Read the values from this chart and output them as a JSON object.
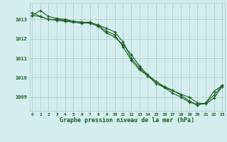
{
  "hours": [
    0,
    1,
    2,
    3,
    4,
    5,
    6,
    7,
    8,
    9,
    10,
    11,
    12,
    13,
    14,
    15,
    16,
    17,
    18,
    19,
    20,
    21,
    22,
    23
  ],
  "series1": [
    1013.2,
    1013.45,
    1013.15,
    1013.05,
    1013.0,
    1012.9,
    1012.85,
    1012.85,
    1012.7,
    1012.55,
    1012.35,
    1011.85,
    1011.0,
    1010.5,
    1010.1,
    1009.7,
    1009.5,
    1009.2,
    1009.0,
    1008.75,
    1008.6,
    1008.7,
    1009.3,
    1009.6
  ],
  "series2": [
    1013.2,
    1013.15,
    1013.0,
    1012.95,
    1012.9,
    1012.85,
    1012.8,
    1012.85,
    1012.7,
    1012.4,
    1012.2,
    1011.6,
    1010.9,
    1010.4,
    1010.1,
    1009.8,
    1009.5,
    1009.35,
    1009.1,
    1008.8,
    1008.6,
    1008.7,
    1009.1,
    1009.6
  ],
  "series3": [
    1013.35,
    1013.15,
    1013.0,
    1013.0,
    1012.95,
    1012.9,
    1012.85,
    1012.8,
    1012.65,
    1012.3,
    1012.1,
    1011.7,
    1011.2,
    1010.6,
    1010.15,
    1009.8,
    1009.55,
    1009.35,
    1009.15,
    1009.0,
    1008.7,
    1008.65,
    1008.95,
    1009.55
  ],
  "title": "Graphe pression niveau de la mer (hPa)",
  "bg_color": "#d4eef0",
  "grid_color": "#b0cece",
  "line_color": "#1a5c1a",
  "tick_label_color": "#1a5c1a",
  "title_color": "#1a5c1a",
  "ylim_min": 1008.3,
  "ylim_max": 1013.85,
  "yticks": [
    1009,
    1010,
    1011,
    1012,
    1013
  ]
}
